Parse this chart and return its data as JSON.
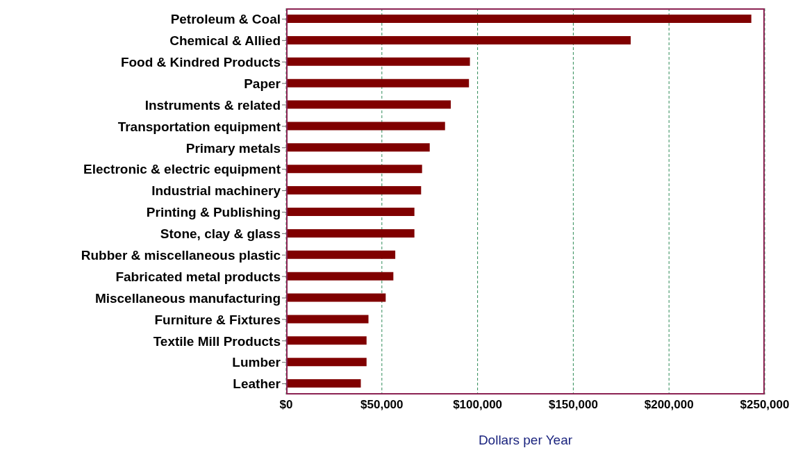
{
  "chart_data": {
    "type": "bar",
    "orientation": "horizontal",
    "xlabel": "Dollars per Year",
    "categories": [
      "Petroleum & Coal",
      "Chemical & Allied",
      "Food & Kindred Products",
      "Paper",
      "Instruments & related",
      "Transportation equipment",
      "Primary metals",
      "Electronic & electric equipment",
      "Industrial machinery",
      "Printing & Publishing",
      "Stone, clay & glass",
      "Rubber & miscellaneous plastic",
      "Fabricated metal products",
      "Miscellaneous manufacturing",
      "Furniture & Fixtures",
      "Textile Mill Products",
      "Lumber",
      "Leather"
    ],
    "values": [
      243000,
      180000,
      96000,
      95500,
      86000,
      83000,
      75000,
      71000,
      70500,
      67000,
      67000,
      57000,
      56000,
      52000,
      43000,
      42000,
      42000,
      39000
    ],
    "color": "#800000",
    "xlim": [
      0,
      250000
    ],
    "xticks": [
      {
        "value": 0,
        "label": "$0"
      },
      {
        "value": 50000,
        "label": "$50,000"
      },
      {
        "value": 100000,
        "label": "$100,000"
      },
      {
        "value": 150000,
        "label": "$150,000"
      },
      {
        "value": 200000,
        "label": "$200,000"
      },
      {
        "value": 250000,
        "label": "$250,000"
      }
    ],
    "grid": "x"
  }
}
